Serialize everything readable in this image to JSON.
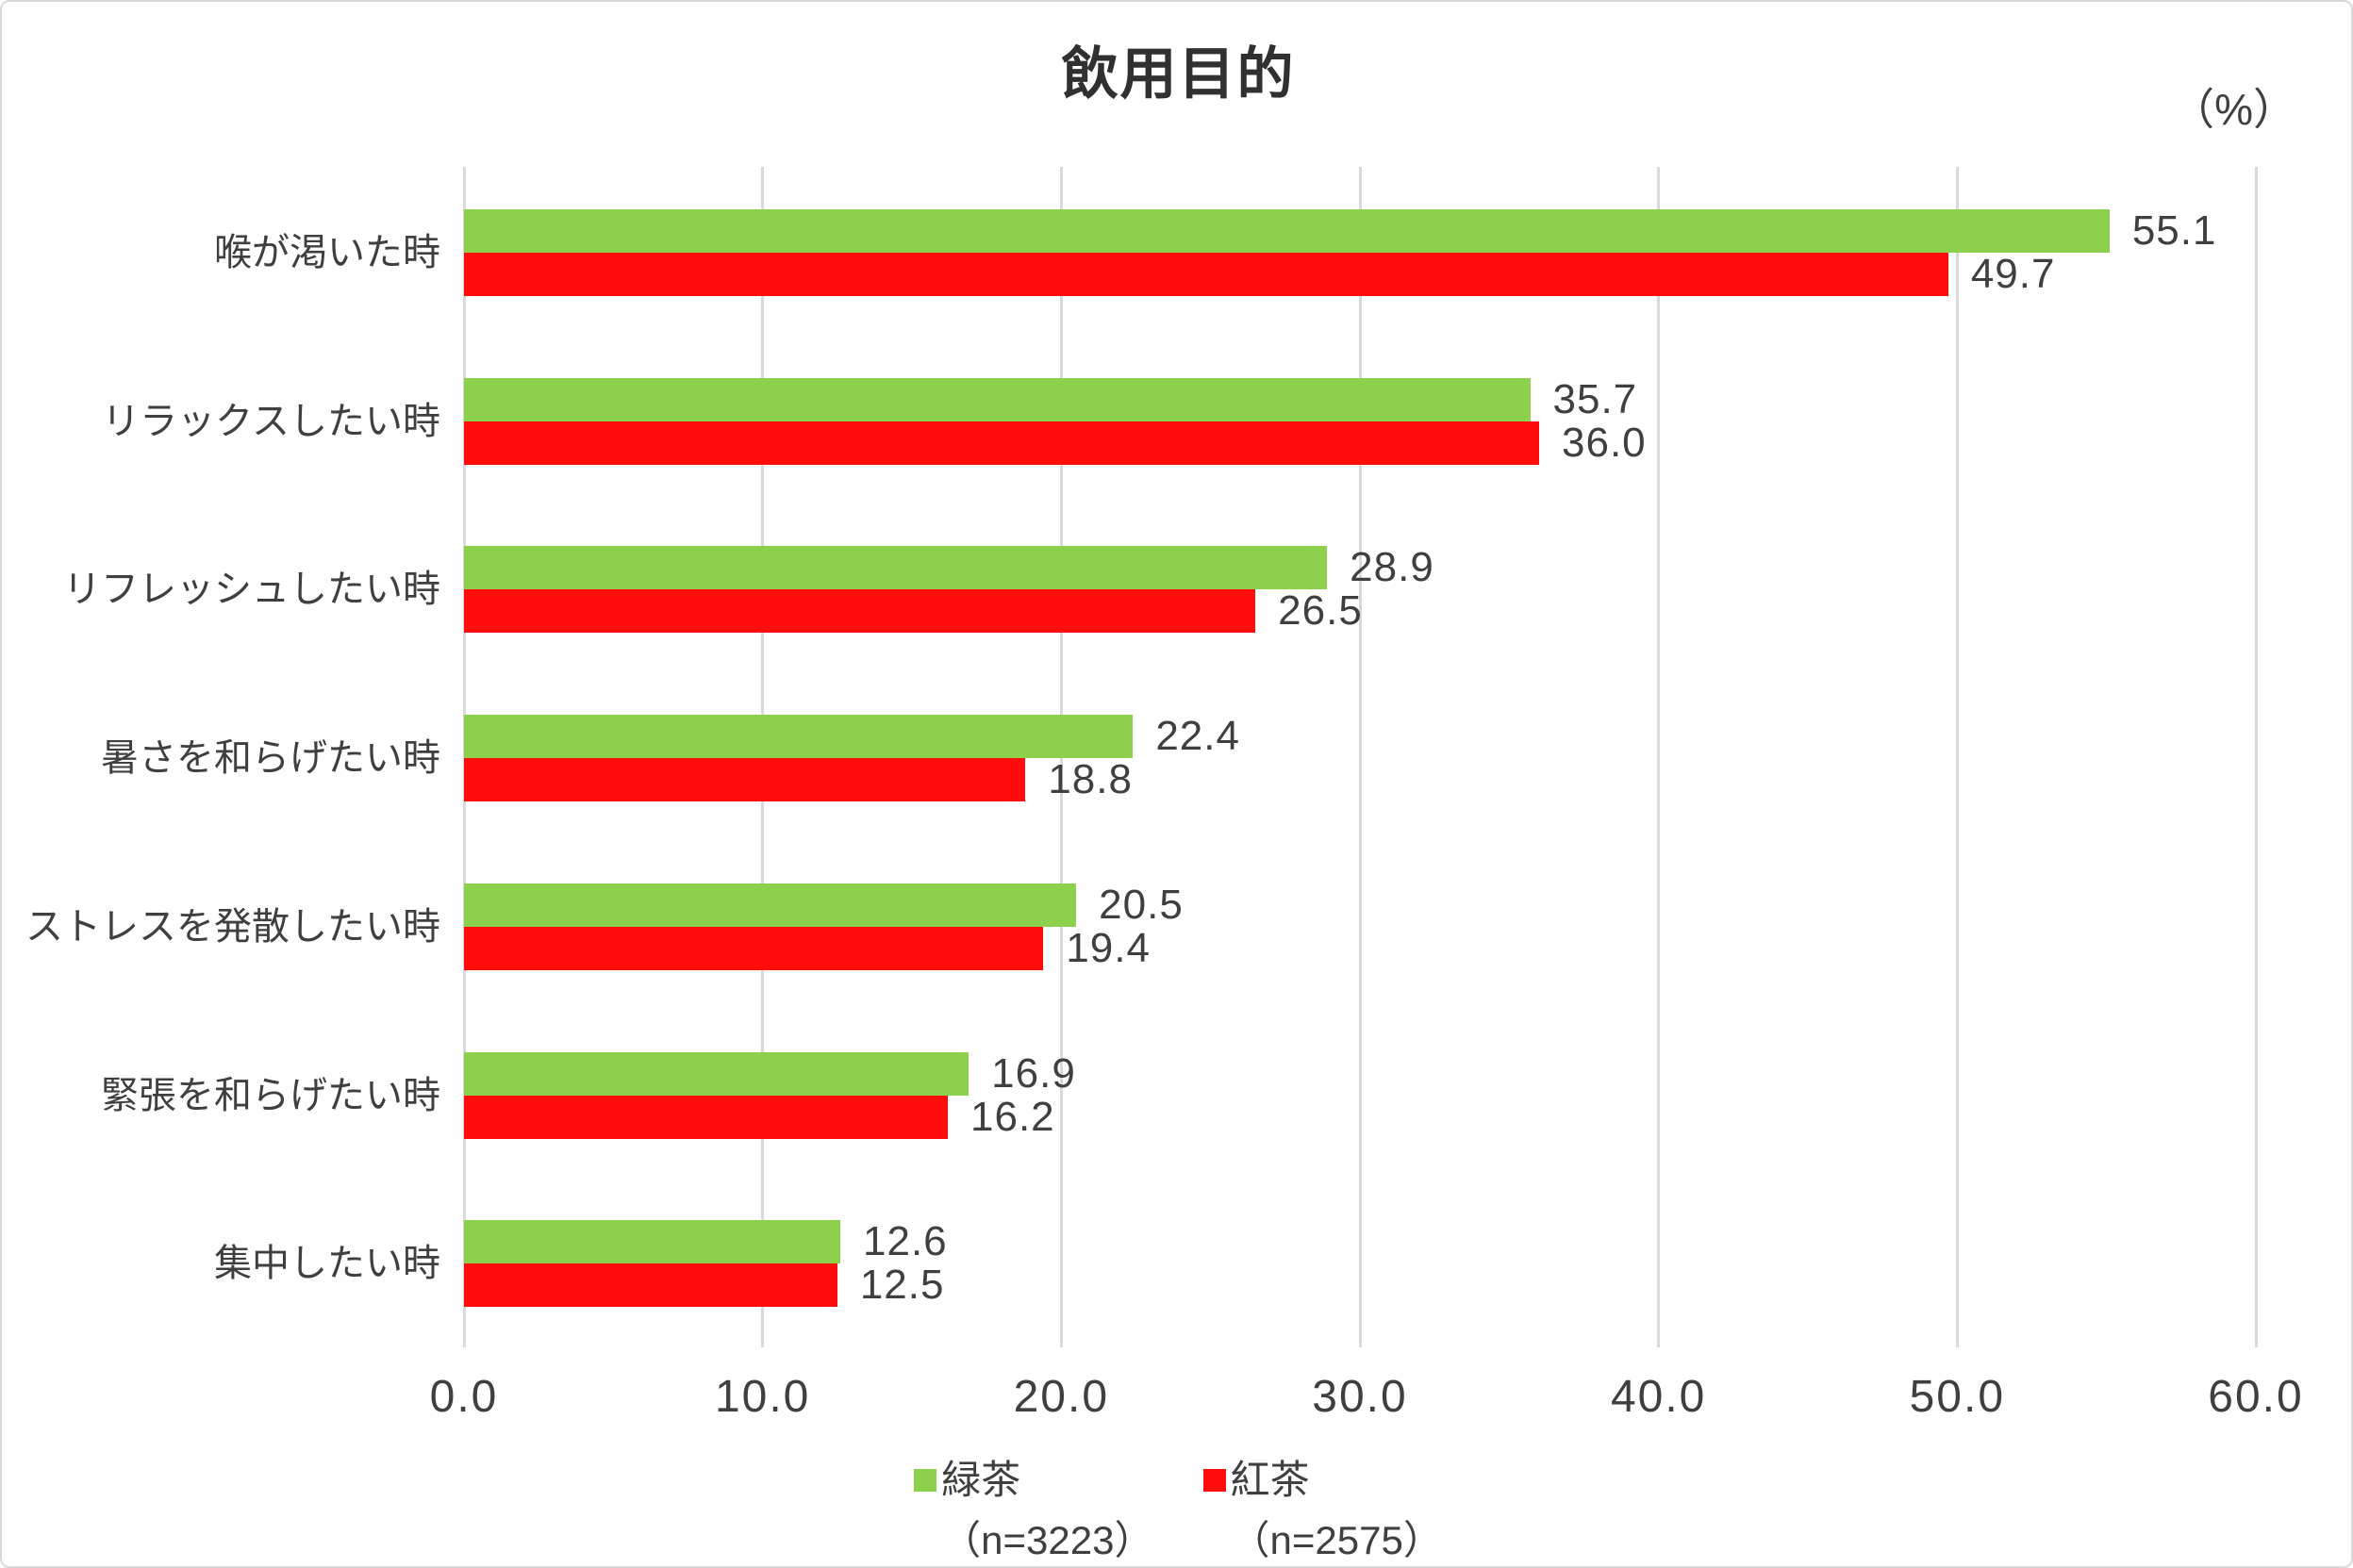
{
  "title": "飲用目的",
  "unit_label": "（%）",
  "colors": {
    "green_tea": "#8DD04B",
    "black_tea": "#FF0D0D",
    "gridline": "#D9D9D9",
    "text": "#3F3F3F",
    "frame_border": "#D9D9D9"
  },
  "chart_data": {
    "type": "bar",
    "orientation": "horizontal",
    "title": "飲用目的",
    "unit": "（%）",
    "categories": [
      "喉が渇いた時",
      "リラックスしたい時",
      "リフレッシュしたい時",
      "暑さを和らげたい時",
      "ストレスを発散したい時",
      "緊張を和らげたい時",
      "集中したい時"
    ],
    "series": [
      {
        "name": "緑茶",
        "sub_label": "（n=3223）",
        "color": "#8DD04B",
        "values": [
          55.1,
          35.7,
          28.9,
          22.4,
          20.5,
          16.9,
          12.6
        ]
      },
      {
        "name": "紅茶",
        "sub_label": "（n=2575）",
        "color": "#FF0D0D",
        "values": [
          49.7,
          36.0,
          26.5,
          18.8,
          19.4,
          16.2,
          12.5
        ]
      }
    ],
    "xlim": [
      0,
      60
    ],
    "xticks": [
      "0.0",
      "10.0",
      "20.0",
      "30.0",
      "40.0",
      "50.0",
      "60.0"
    ],
    "xtick_values": [
      0,
      10,
      20,
      30,
      40,
      50,
      60
    ],
    "grid": true,
    "value_labels": true,
    "legend_position": "bottom"
  }
}
